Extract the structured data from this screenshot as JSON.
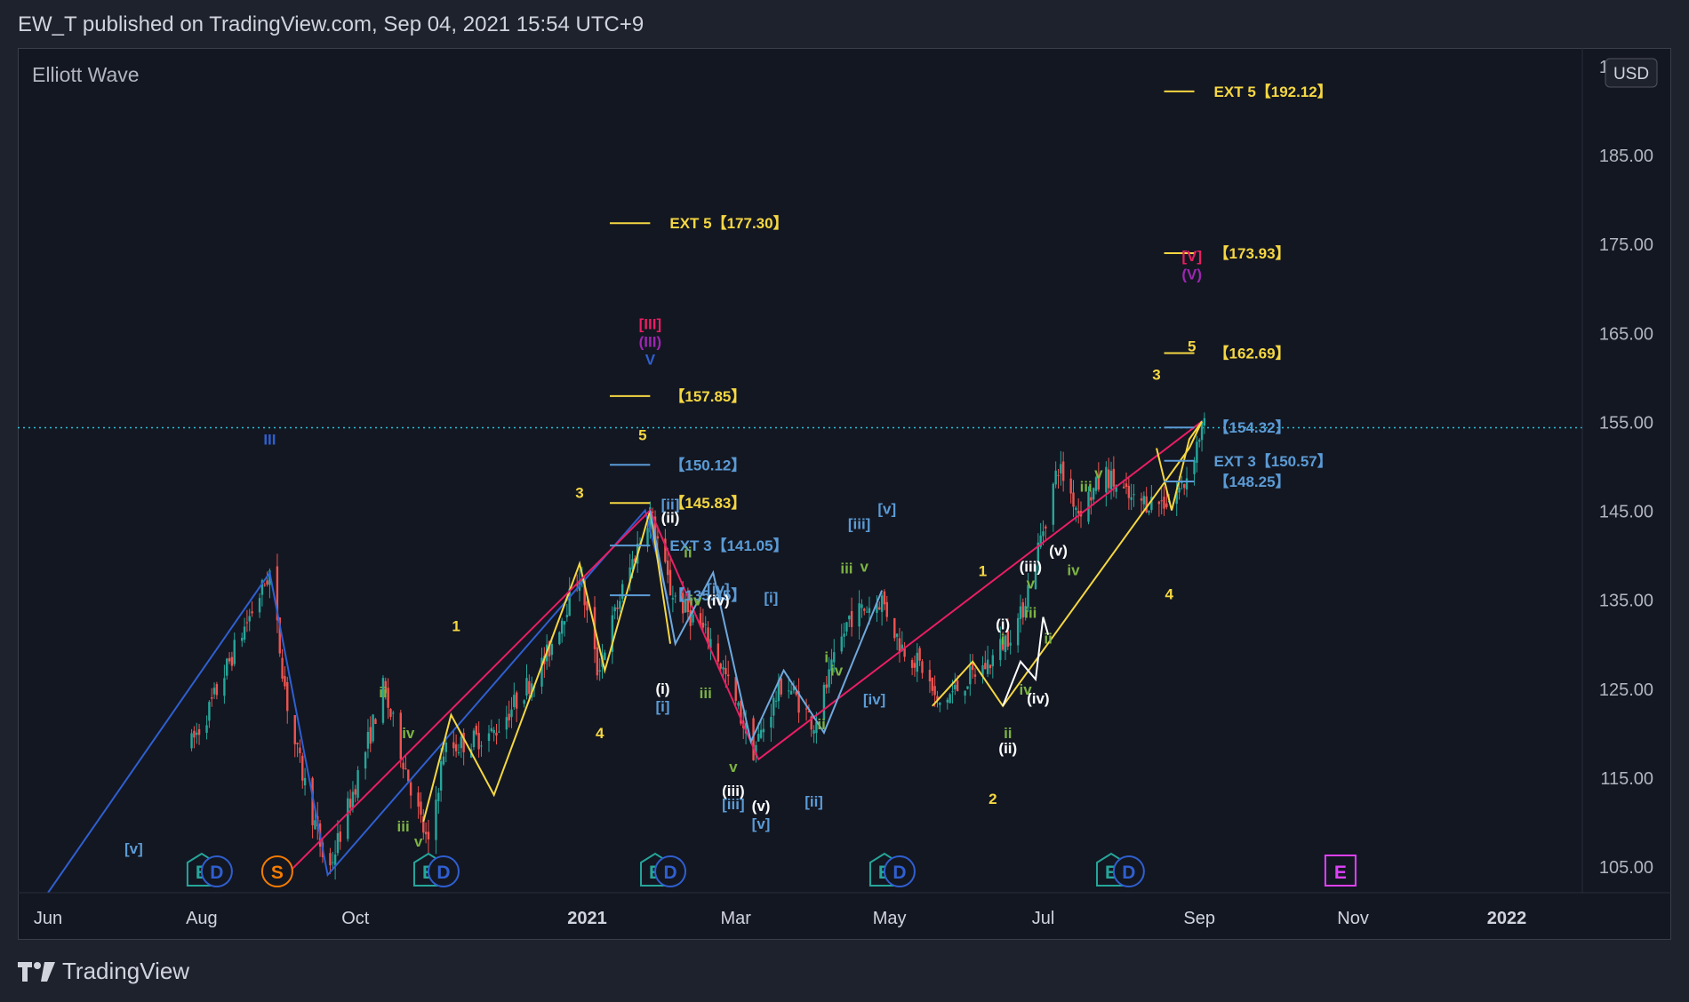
{
  "header": {
    "publisher_line": "EW_T published on TradingView.com, Sep 04, 2021 15:54 UTC+9"
  },
  "chart_title": "Elliott Wave",
  "currency": "USD",
  "price_axis": {
    "top_partial": "195.00",
    "ticks": [
      "185.00",
      "175.00",
      "165.00",
      "155.00",
      "145.00",
      "135.00",
      "125.00",
      "115.00",
      "105.00"
    ]
  },
  "time_axis": [
    {
      "label": "Jun",
      "bold": false
    },
    {
      "label": "Aug",
      "bold": false
    },
    {
      "label": "Oct",
      "bold": false
    },
    {
      "label": "2021",
      "bold": true
    },
    {
      "label": "Mar",
      "bold": false
    },
    {
      "label": "May",
      "bold": false
    },
    {
      "label": "Jul",
      "bold": false
    },
    {
      "label": "Sep",
      "bold": false
    },
    {
      "label": "Nov",
      "bold": false
    },
    {
      "label": "2022",
      "bold": true
    }
  ],
  "footer": {
    "brand": "TradingView"
  },
  "colors": {
    "bg": "#131722",
    "frame": "#1e222d",
    "text": "#d1d4dc",
    "axis_text": "#b2b5be",
    "up": "#26a69a",
    "down": "#ef5350",
    "yellow": "#f5d742",
    "blue_light": "#5b9bd5",
    "blue": "#2f5fd0",
    "pink": "#e91e63",
    "purple": "#9c27b0",
    "green": "#7cb342",
    "white": "#ffffff",
    "price_line": "#26c6da"
  },
  "chart_data": {
    "type": "candlestick",
    "title": "Elliott Wave",
    "ylabel": "USD",
    "ylim": [
      102,
      197
    ],
    "x_range": [
      "2020-05-20",
      "2022-01-31"
    ],
    "last_price": 154.3,
    "price_series": [
      [
        "2020-06-01",
        100
      ],
      [
        "2020-07-01",
        106
      ],
      [
        "2020-07-15",
        112
      ],
      [
        "2020-08-03",
        122
      ],
      [
        "2020-08-15",
        130
      ],
      [
        "2020-08-28",
        138
      ],
      [
        "2020-09-05",
        121
      ],
      [
        "2020-09-20",
        104
      ],
      [
        "2020-10-05",
        118
      ],
      [
        "2020-10-12",
        125
      ],
      [
        "2020-10-30",
        107
      ],
      [
        "2020-11-05",
        118
      ],
      [
        "2020-11-25",
        120
      ],
      [
        "2020-12-15",
        128
      ],
      [
        "2020-12-29",
        138
      ],
      [
        "2021-01-05",
        127
      ],
      [
        "2021-01-15",
        136
      ],
      [
        "2021-01-26",
        145
      ],
      [
        "2021-02-03",
        136
      ],
      [
        "2021-02-20",
        130
      ],
      [
        "2021-03-08",
        118
      ],
      [
        "2021-03-20",
        126
      ],
      [
        "2021-04-01",
        121
      ],
      [
        "2021-04-15",
        133
      ],
      [
        "2021-04-28",
        135
      ],
      [
        "2021-05-05",
        130
      ],
      [
        "2021-05-15",
        127
      ],
      [
        "2021-05-20",
        123
      ],
      [
        "2021-06-01",
        126
      ],
      [
        "2021-06-10",
        128
      ],
      [
        "2021-06-22",
        133
      ],
      [
        "2021-07-01",
        143
      ],
      [
        "2021-07-07",
        150
      ],
      [
        "2021-07-15",
        145
      ],
      [
        "2021-07-26",
        149
      ],
      [
        "2021-08-05",
        146
      ],
      [
        "2021-08-19",
        146
      ],
      [
        "2021-08-26",
        148
      ],
      [
        "2021-09-02",
        154.3
      ]
    ],
    "wave_lines": [
      {
        "name": "blue",
        "points": [
          [
            "2020-06-01",
            102
          ],
          [
            "2020-08-28",
            138
          ],
          [
            "2020-09-20",
            104
          ],
          [
            "2021-01-24",
            145
          ],
          [
            "2021-02-02",
            135
          ]
        ]
      },
      {
        "name": "yellow-1",
        "points": [
          [
            "2020-10-28",
            110
          ],
          [
            "2020-11-08",
            122
          ],
          [
            "2020-11-25",
            113
          ],
          [
            "2020-12-29",
            139
          ],
          [
            "2021-01-08",
            127
          ],
          [
            "2021-01-26",
            145
          ],
          [
            "2021-02-03",
            130
          ]
        ]
      },
      {
        "name": "pink",
        "points": [
          [
            "2020-08-31",
            103
          ],
          [
            "2021-01-26",
            145
          ],
          [
            "2021-03-10",
            117
          ],
          [
            "2021-09-02",
            155
          ]
        ]
      },
      {
        "name": "cyan",
        "points": [
          [
            "2021-01-26",
            145
          ],
          [
            "2021-02-05",
            130
          ],
          [
            "2021-02-20",
            138
          ],
          [
            "2021-03-07",
            119
          ],
          [
            "2021-03-20",
            127
          ],
          [
            "2021-04-05",
            120
          ],
          [
            "2021-04-28",
            136
          ]
        ]
      },
      {
        "name": "yellow-2",
        "points": [
          [
            "2021-05-18",
            123
          ],
          [
            "2021-06-03",
            128
          ],
          [
            "2021-06-15",
            123
          ],
          [
            "2021-08-28",
            152
          ],
          [
            "2021-09-02",
            155
          ]
        ]
      },
      {
        "name": "white",
        "points": [
          [
            "2021-06-15",
            123
          ],
          [
            "2021-06-22",
            128
          ],
          [
            "2021-06-28",
            126
          ],
          [
            "2021-07-01",
            133
          ],
          [
            "2021-07-03",
            131
          ]
        ]
      },
      {
        "name": "yellow-3",
        "points": [
          [
            "2021-08-15",
            152
          ],
          [
            "2021-08-21",
            145
          ],
          [
            "2021-08-28",
            153
          ],
          [
            "2021-09-02",
            155
          ]
        ]
      }
    ],
    "targets": [
      {
        "label": "EXT 5【177.30】",
        "value": 177.3,
        "color": "#f5d742",
        "start": "2021-01-10",
        "end": "2021-01-26"
      },
      {
        "label": "【157.85】",
        "value": 157.85,
        "color": "#f5d742",
        "start": "2021-01-10",
        "end": "2021-01-26"
      },
      {
        "label": "【150.12】",
        "value": 150.12,
        "color": "#5b9bd5",
        "start": "2021-01-10",
        "end": "2021-01-26"
      },
      {
        "label": "【145.83】",
        "value": 145.83,
        "color": "#f5d742",
        "start": "2021-01-10",
        "end": "2021-01-26"
      },
      {
        "label": "EXT 3【141.05】",
        "value": 141.05,
        "color": "#5b9bd5",
        "start": "2021-01-10",
        "end": "2021-01-26"
      },
      {
        "label": "【135.45】",
        "value": 135.45,
        "color": "#5b9bd5",
        "start": "2021-01-10",
        "end": "2021-01-26"
      },
      {
        "label": "EXT 5【192.12】",
        "value": 192.12,
        "color": "#f5d742",
        "start": "2021-08-18",
        "end": "2021-08-30"
      },
      {
        "label": "【173.93】",
        "value": 173.93,
        "color": "#f5d742",
        "start": "2021-08-18",
        "end": "2021-08-30"
      },
      {
        "label": "【162.69】",
        "value": 162.69,
        "color": "#f5d742",
        "start": "2021-08-18",
        "end": "2021-08-30"
      },
      {
        "label": "【154.32】",
        "value": 154.32,
        "color": "#5b9bd5",
        "start": "2021-08-18",
        "end": "2021-08-30"
      },
      {
        "label": "EXT 3【150.57】",
        "value": 150.57,
        "color": "#5b9bd5",
        "start": "2021-08-18",
        "end": "2021-08-30"
      },
      {
        "label": "【148.25】",
        "value": 148.25,
        "color": "#5b9bd5",
        "start": "2021-08-18",
        "end": "2021-08-30"
      }
    ],
    "wave_labels": [
      {
        "t": "III",
        "d": "2020-08-28",
        "v": 153,
        "c": "#2f5fd0"
      },
      {
        "t": "[v]",
        "d": "2020-07-05",
        "v": 107,
        "c": "#5b9bd5"
      },
      {
        "t": "1",
        "d": "2020-11-10",
        "v": 132,
        "c": "#f5d742"
      },
      {
        "t": "2",
        "d": "2020-11-22",
        "v": 101,
        "c": "#f5d742"
      },
      {
        "t": "3",
        "d": "2020-12-29",
        "v": 147,
        "c": "#f5d742"
      },
      {
        "t": "4",
        "d": "2021-01-06",
        "v": 120,
        "c": "#f5d742"
      },
      {
        "t": "5",
        "d": "2021-01-23",
        "v": 153.5,
        "c": "#f5d742"
      },
      {
        "t": "ii",
        "d": "2020-10-12",
        "v": 124.6,
        "c": "#7cb342"
      },
      {
        "t": "iv",
        "d": "2020-10-22",
        "v": 120,
        "c": "#7cb342"
      },
      {
        "t": "iii",
        "d": "2020-10-20",
        "v": 109.5,
        "c": "#7cb342"
      },
      {
        "t": "v",
        "d": "2020-10-26",
        "v": 107.8,
        "c": "#7cb342"
      },
      {
        "t": "[III]",
        "d": "2021-01-26",
        "v": 166,
        "c": "#e91e63"
      },
      {
        "t": "(III)",
        "d": "2021-01-26",
        "v": 164,
        "c": "#9c27b0"
      },
      {
        "t": "V",
        "d": "2021-01-26",
        "v": 162,
        "c": "#2f5fd0"
      },
      {
        "t": "[ii]",
        "d": "2021-02-03",
        "v": 145.7,
        "c": "#5b9bd5"
      },
      {
        "t": "(ii)",
        "d": "2021-02-03",
        "v": 144.2,
        "c": "#ffffff"
      },
      {
        "t": "ii",
        "d": "2021-02-10",
        "v": 140.3,
        "c": "#7cb342"
      },
      {
        "t": "[iv]",
        "d": "2021-02-22",
        "v": 136.2,
        "c": "#5b9bd5"
      },
      {
        "t": "(iv)",
        "d": "2021-02-22",
        "v": 134.9,
        "c": "#ffffff"
      },
      {
        "t": "iv",
        "d": "2021-02-13",
        "v": 134.9,
        "c": "#7cb342"
      },
      {
        "t": "[i]",
        "d": "2021-03-15",
        "v": 135.2,
        "c": "#5b9bd5"
      },
      {
        "t": "(i)",
        "d": "2021-01-31",
        "v": 125,
        "c": "#ffffff"
      },
      {
        "t": "[i]",
        "d": "2021-01-31",
        "v": 123,
        "c": "#5b9bd5"
      },
      {
        "t": "iii",
        "d": "2021-02-17",
        "v": 124.5,
        "c": "#7cb342"
      },
      {
        "t": "v",
        "d": "2021-02-28",
        "v": 116.2,
        "c": "#7cb342"
      },
      {
        "t": "(iii)",
        "d": "2021-02-28",
        "v": 113.5,
        "c": "#ffffff"
      },
      {
        "t": "[iii]",
        "d": "2021-02-28",
        "v": 112,
        "c": "#5b9bd5"
      },
      {
        "t": "(v)",
        "d": "2021-03-11",
        "v": 111.8,
        "c": "#ffffff"
      },
      {
        "t": "[v]",
        "d": "2021-03-11",
        "v": 109.8,
        "c": "#5b9bd5"
      },
      {
        "t": "[ii]",
        "d": "2021-04-01",
        "v": 112.3,
        "c": "#5b9bd5"
      },
      {
        "t": "ii",
        "d": "2021-04-04",
        "v": 121,
        "c": "#7cb342"
      },
      {
        "t": "i",
        "d": "2021-04-06",
        "v": 128.5,
        "c": "#7cb342"
      },
      {
        "t": "iv",
        "d": "2021-04-10",
        "v": 127,
        "c": "#7cb342"
      },
      {
        "t": "[iv]",
        "d": "2021-04-25",
        "v": 123.8,
        "c": "#5b9bd5"
      },
      {
        "t": "[iii]",
        "d": "2021-04-19",
        "v": 143.5,
        "c": "#5b9bd5"
      },
      {
        "t": "[v]",
        "d": "2021-04-30",
        "v": 145.2,
        "c": "#5b9bd5"
      },
      {
        "t": "iii",
        "d": "2021-04-14",
        "v": 138.5,
        "c": "#7cb342"
      },
      {
        "t": "v",
        "d": "2021-04-21",
        "v": 138.7,
        "c": "#7cb342"
      },
      {
        "t": "1",
        "d": "2021-06-07",
        "v": 138.2,
        "c": "#f5d742"
      },
      {
        "t": "2",
        "d": "2021-06-11",
        "v": 112.6,
        "c": "#f5d742"
      },
      {
        "t": "(i)",
        "d": "2021-06-15",
        "v": 132.2,
        "c": "#ffffff"
      },
      {
        "t": "i",
        "d": "2021-06-15",
        "v": 130.5,
        "c": "#7cb342"
      },
      {
        "t": "(ii)",
        "d": "2021-06-17",
        "v": 118.3,
        "c": "#ffffff"
      },
      {
        "t": "ii",
        "d": "2021-06-17",
        "v": 120,
        "c": "#7cb342"
      },
      {
        "t": "iv",
        "d": "2021-06-24",
        "v": 124.9,
        "c": "#7cb342"
      },
      {
        "t": "(iv)",
        "d": "2021-06-29",
        "v": 123.9,
        "c": "#ffffff"
      },
      {
        "t": "(iii)",
        "d": "2021-06-26",
        "v": 138.7,
        "c": "#ffffff"
      },
      {
        "t": "v",
        "d": "2021-06-26",
        "v": 136.8,
        "c": "#7cb342"
      },
      {
        "t": "iii",
        "d": "2021-06-26",
        "v": 133.5,
        "c": "#7cb342"
      },
      {
        "t": "ii",
        "d": "2021-07-03",
        "v": 130.6,
        "c": "#7cb342"
      },
      {
        "t": "(v)",
        "d": "2021-07-07",
        "v": 140.5,
        "c": "#ffffff"
      },
      {
        "t": "iv",
        "d": "2021-07-13",
        "v": 138.3,
        "c": "#7cb342"
      },
      {
        "t": "iii",
        "d": "2021-07-18",
        "v": 147.7,
        "c": "#7cb342"
      },
      {
        "t": "v",
        "d": "2021-07-23",
        "v": 149.2,
        "c": "#7cb342"
      },
      {
        "t": "3",
        "d": "2021-08-15",
        "v": 160.3,
        "c": "#f5d742"
      },
      {
        "t": "4",
        "d": "2021-08-20",
        "v": 135.6,
        "c": "#f5d742"
      },
      {
        "t": "5",
        "d": "2021-08-29",
        "v": 163.5,
        "c": "#f5d742"
      },
      {
        "t": "[V]",
        "d": "2021-08-29",
        "v": 173.6,
        "c": "#e91e63"
      },
      {
        "t": "(V)",
        "d": "2021-08-29",
        "v": 171.6,
        "c": "#9c27b0"
      }
    ],
    "events": [
      {
        "t": "E",
        "d": "2020-08-01",
        "c": "#26a69a",
        "shape": "pentagon"
      },
      {
        "t": "D",
        "d": "2020-08-07",
        "c": "#2f5fd0",
        "shape": "circle"
      },
      {
        "t": "S",
        "d": "2020-08-31",
        "c": "#f57c00",
        "shape": "circle"
      },
      {
        "t": "E",
        "d": "2020-10-30",
        "c": "#26a69a",
        "shape": "pentagon"
      },
      {
        "t": "D",
        "d": "2020-11-05",
        "c": "#2f5fd0",
        "shape": "circle"
      },
      {
        "t": "E",
        "d": "2021-01-28",
        "c": "#26a69a",
        "shape": "pentagon"
      },
      {
        "t": "D",
        "d": "2021-02-03",
        "c": "#2f5fd0",
        "shape": "circle"
      },
      {
        "t": "E",
        "d": "2021-04-29",
        "c": "#26a69a",
        "shape": "pentagon"
      },
      {
        "t": "D",
        "d": "2021-05-05",
        "c": "#2f5fd0",
        "shape": "circle"
      },
      {
        "t": "E",
        "d": "2021-07-28",
        "c": "#26a69a",
        "shape": "pentagon"
      },
      {
        "t": "D",
        "d": "2021-08-04",
        "c": "#2f5fd0",
        "shape": "circle"
      },
      {
        "t": "E",
        "d": "2021-10-27",
        "c": "#e040fb",
        "shape": "square"
      }
    ]
  }
}
